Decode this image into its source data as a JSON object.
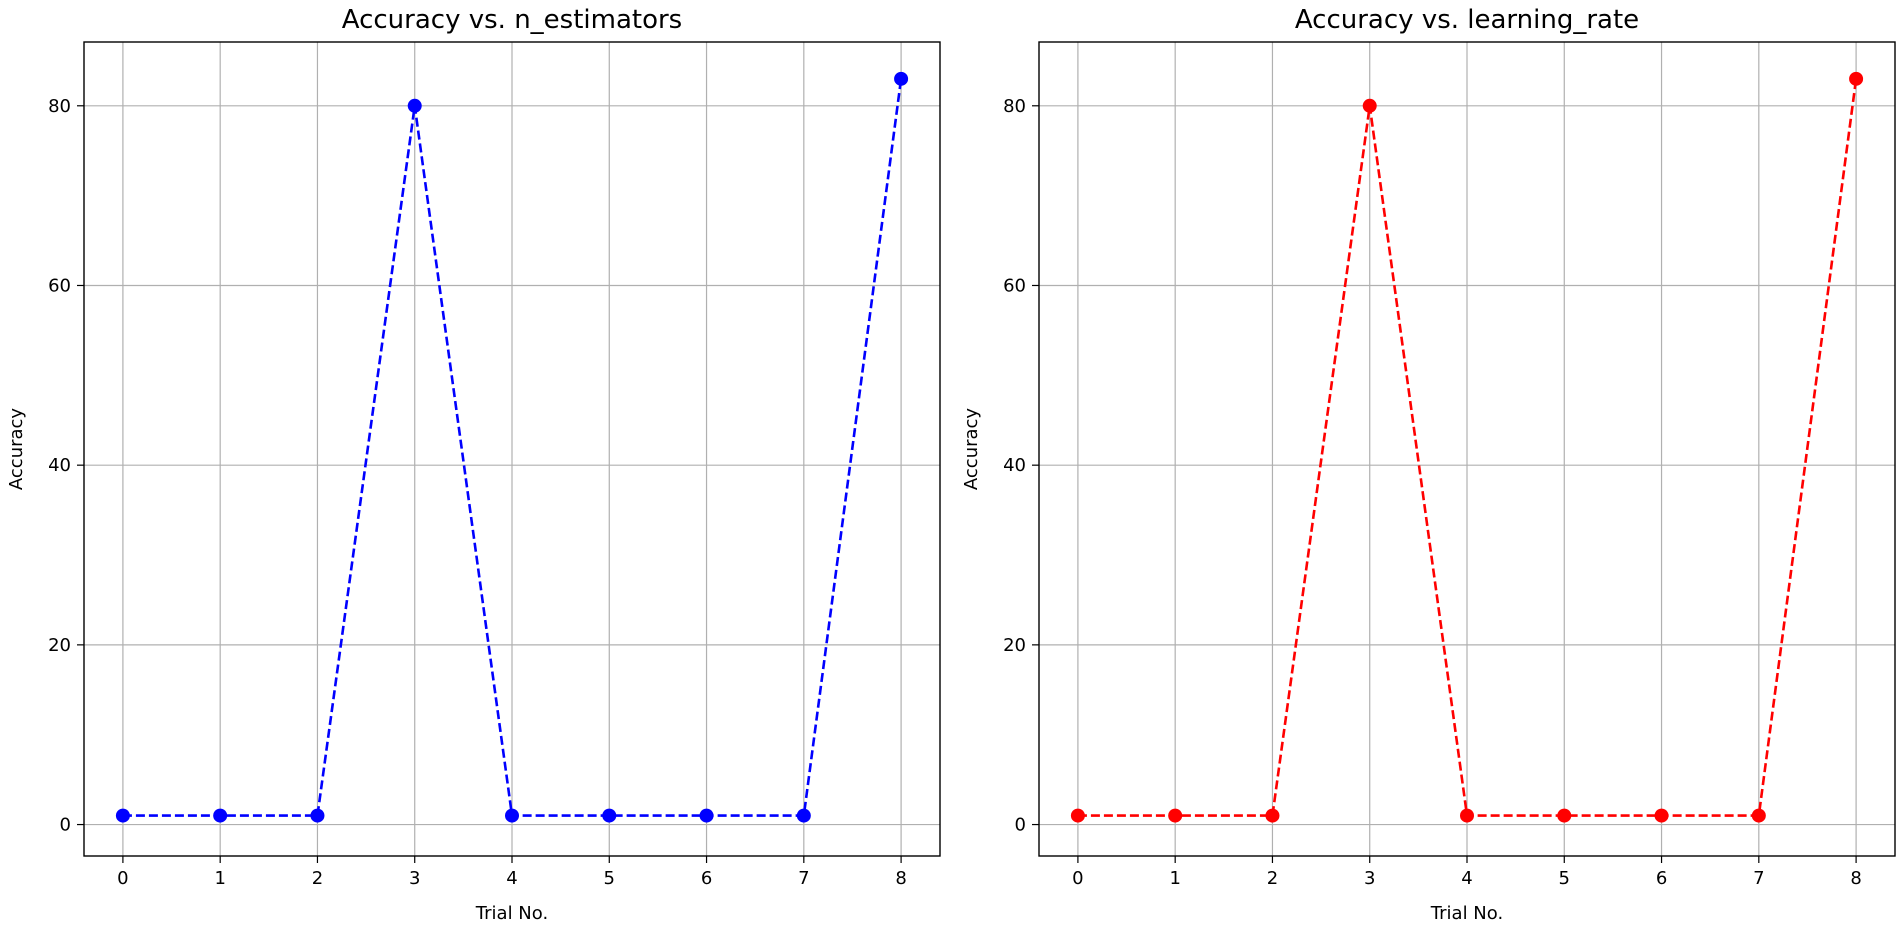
{
  "chart_data": [
    {
      "type": "line",
      "title": "Accuracy vs. n_estimators",
      "xlabel": "Trial No.",
      "ylabel": "Accuracy",
      "x": [
        0,
        1,
        2,
        3,
        4,
        5,
        6,
        7,
        8
      ],
      "series": [
        {
          "values": [
            1,
            1,
            1,
            80,
            1,
            1,
            1,
            1,
            83
          ],
          "color": "#0000ff",
          "line_style": "dashed",
          "marker": "circle"
        }
      ],
      "xticks": [
        0,
        1,
        2,
        3,
        4,
        5,
        6,
        7,
        8
      ],
      "yticks": [
        0,
        20,
        40,
        60,
        80
      ],
      "xlim": [
        -0.4,
        8.4
      ],
      "ylim": [
        -3.5,
        87.1
      ],
      "grid": true
    },
    {
      "type": "line",
      "title": "Accuracy vs. learning_rate",
      "xlabel": "Trial No.",
      "ylabel": "Accuracy",
      "x": [
        0,
        1,
        2,
        3,
        4,
        5,
        6,
        7,
        8
      ],
      "series": [
        {
          "values": [
            1,
            1,
            1,
            80,
            1,
            1,
            1,
            1,
            83
          ],
          "color": "#ff0000",
          "line_style": "dashed",
          "marker": "circle"
        }
      ],
      "xticks": [
        0,
        1,
        2,
        3,
        4,
        5,
        6,
        7,
        8
      ],
      "yticks": [
        0,
        20,
        40,
        60,
        80
      ],
      "xlim": [
        -0.4,
        8.4
      ],
      "ylim": [
        -3.5,
        87.1
      ],
      "grid": true
    }
  ]
}
